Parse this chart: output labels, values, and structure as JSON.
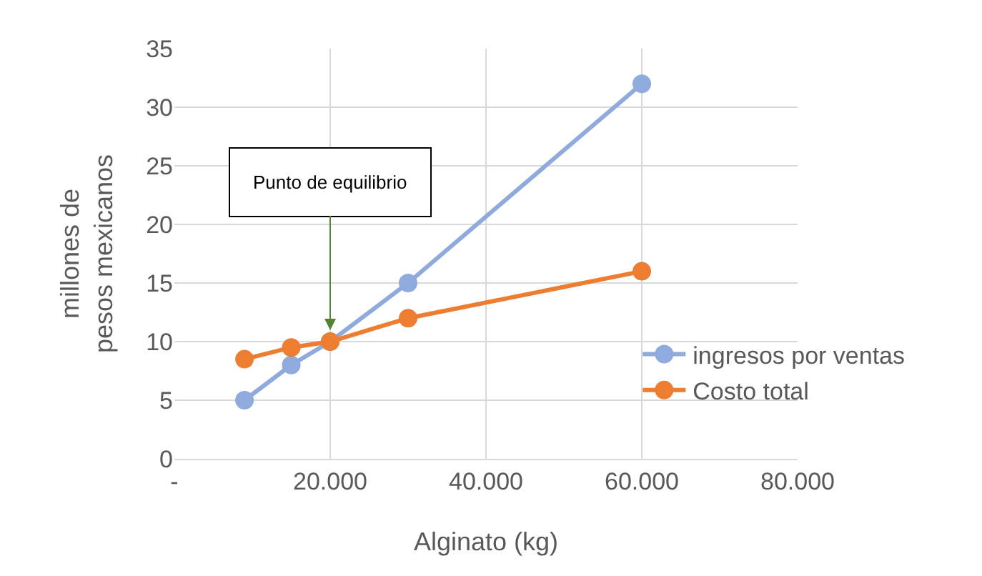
{
  "chart_data": {
    "type": "line",
    "xlabel": "Alginato (kg)",
    "ylabel": "millones de pesos mexicanos",
    "series": [
      {
        "name": "ingresos por ventas",
        "color": "#8faadc",
        "x": [
          9000,
          15000,
          20000,
          30000,
          60000
        ],
        "values": [
          5,
          8,
          10,
          15,
          32
        ]
      },
      {
        "name": "Costo total",
        "color": "#ed7d31",
        "x": [
          9000,
          15000,
          20000,
          30000,
          60000
        ],
        "values": [
          8.5,
          9.5,
          10,
          12,
          16
        ]
      }
    ],
    "xlim": [
      0,
      80000
    ],
    "xticks": [
      {
        "value": 0,
        "label": "-"
      },
      {
        "value": 20000,
        "label": "20.000"
      },
      {
        "value": 40000,
        "label": "40.000"
      },
      {
        "value": 60000,
        "label": "60.000"
      },
      {
        "value": 80000,
        "label": "80.000"
      }
    ],
    "ylim": [
      0,
      35
    ],
    "yticks": [
      0,
      5,
      10,
      15,
      20,
      25,
      30,
      35
    ],
    "annotations": [
      {
        "text": "Punto de equilibrio",
        "x": 20000,
        "y": 10
      }
    ],
    "grid": true,
    "legend": "right",
    "marker": "circle",
    "line_style": "solid"
  }
}
